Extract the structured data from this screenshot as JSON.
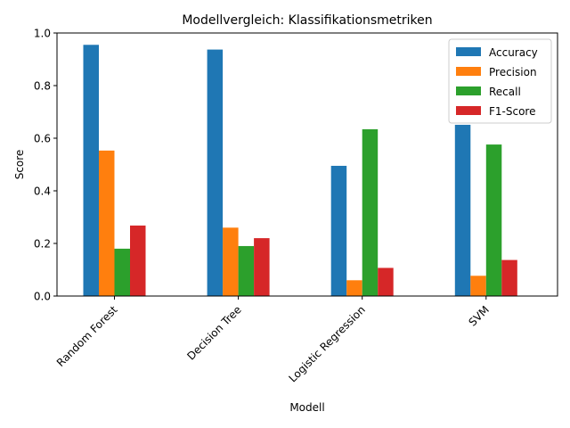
{
  "chart_data": {
    "type": "bar",
    "title": "Modellvergleich: Klassifikationsmetriken",
    "xlabel": "Modell",
    "ylabel": "Score",
    "ylim": [
      0,
      1.0
    ],
    "yticks": [
      "0.0",
      "0.2",
      "0.4",
      "0.6",
      "0.8",
      "1.0"
    ],
    "categories": [
      "Random Forest",
      "Decision Tree",
      "Logistic Regression",
      "SVM"
    ],
    "series": [
      {
        "name": "Accuracy",
        "color": "#1f77b4",
        "values": [
          0.955,
          0.937,
          0.495,
          0.651
        ]
      },
      {
        "name": "Precision",
        "color": "#ff7f0e",
        "values": [
          0.553,
          0.26,
          0.06,
          0.077
        ]
      },
      {
        "name": "Recall",
        "color": "#2ca02c",
        "values": [
          0.18,
          0.19,
          0.634,
          0.576
        ]
      },
      {
        "name": "F1-Score",
        "color": "#d62728",
        "values": [
          0.268,
          0.22,
          0.107,
          0.137
        ]
      }
    ],
    "grid": false,
    "legend_position": "top-right"
  }
}
